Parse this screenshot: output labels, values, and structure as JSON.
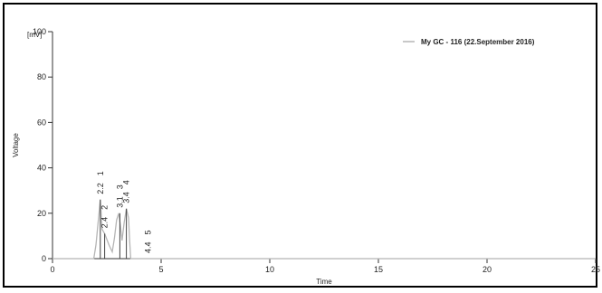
{
  "chart_data": {
    "type": "line",
    "title": "",
    "xlabel": "Time",
    "ylabel": "Voltage",
    "y_unit_label": "[mV]",
    "xlim": [
      0,
      25
    ],
    "ylim": [
      0,
      100
    ],
    "x_ticks": [
      0,
      5,
      10,
      15,
      20,
      25
    ],
    "y_ticks": [
      0,
      20,
      40,
      60,
      80,
      100
    ],
    "grid": false,
    "legend_position": "top-right",
    "series": [
      {
        "name": "My GC - 116 (22.September 2016)",
        "color": "#b5b5b5",
        "x": [
          0,
          1.9,
          2.0,
          2.1,
          2.2,
          2.28,
          2.4,
          2.6,
          2.75,
          2.85,
          2.95,
          3.05,
          3.12,
          3.2,
          3.3,
          3.4,
          3.5,
          3.55,
          3.6,
          3.7,
          25
        ],
        "y": [
          0,
          0,
          6,
          16,
          26,
          13,
          11,
          6,
          3,
          9,
          17,
          20,
          15,
          8,
          16,
          22,
          18,
          8,
          0,
          0,
          0
        ]
      }
    ],
    "peak_markers": [
      {
        "id": "1",
        "time": "2.2",
        "x": 2.2,
        "y": 26
      },
      {
        "id": "2",
        "time": "2.4",
        "x": 2.4,
        "y": 11
      },
      {
        "id": "3",
        "time": "3.1",
        "x": 3.1,
        "y": 20
      },
      {
        "id": "4",
        "time": "3.4",
        "x": 3.4,
        "y": 22
      },
      {
        "id": "5",
        "time": "4.4",
        "x": 4.4,
        "y": 0
      }
    ]
  }
}
